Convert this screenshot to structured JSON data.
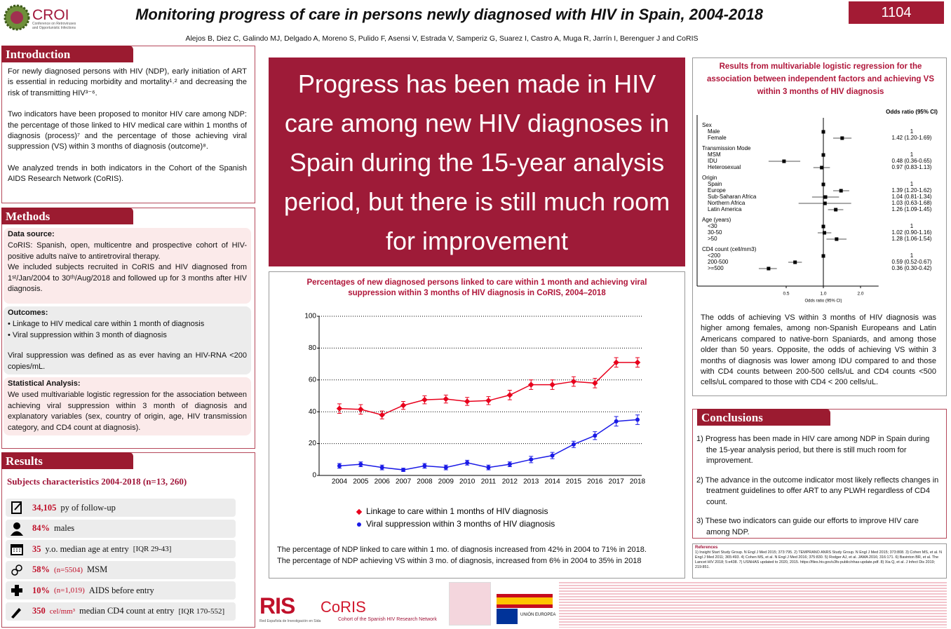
{
  "header": {
    "logo": "CROI",
    "logo_subtitle": "Conference on Retroviruses and Opportunistic Infections",
    "title": "Monitoring progress of care in persons newly diagnosed with HIV in Spain, 2004-2018",
    "authors": "Alejos B, Diez C, Galindo MJ, Delgado A, Moreno S, Pulido F, Asensi V, Estrada V, Samperiz G, Suarez I, Castro A, Muga R, Jarrín I, Berenguer J and CoRIS",
    "poster_number": "1104"
  },
  "introduction": {
    "heading": "Introduction",
    "paragraphs": [
      "For newly diagnosed persons with HIV (NDP), early initiation of ART is essential in reducing morbidity and mortality¹˒² and decreasing the risk of transmitting HIV³⁻⁶.",
      "Two indicators have been proposed to monitor HIV care among NDP: the percentage of those linked to HIV medical care within 1 months of diagnosis (process)⁷ and the percentage of those achieving viral suppression (VS) within 3 months of diagnosis (outcome)⁸.",
      "We analyzed trends in both indicators in the Cohort of the Spanish AIDS Research Network (CoRIS)."
    ]
  },
  "methods": {
    "heading": "Methods",
    "sections": [
      {
        "title": "Data source:",
        "paragraphs": [
          "CoRIS: Spanish, open, multicentre and prospective cohort of HIV-positive adults naïve to antiretroviral therapy.",
          "We included subjects recruited in CoRIS and HIV diagnosed from 1ˢᵗ/Jan/2004 to 30ᵗʰ/Aug/2018 and followed up for 3 months after HIV diagnosis."
        ]
      },
      {
        "title": "Outcomes:",
        "paragraphs": [
          "• Linkage to HIV medical care within 1 month of diagnosis",
          "• Viral suppression within 3 month of diagnosis",
          "Viral suppression was defined as as ever having an HIV-RNA <200 copies/mL."
        ]
      },
      {
        "title": "Statistical Analysis:",
        "paragraphs": [
          "We used multivariable logistic regression for the association between achieving viral suppression within 3 month of diagnosis and explanatory variables (sex, country of origin, age, HIV transmission category, and CD4 count at diagnosis)."
        ]
      }
    ]
  },
  "results": {
    "heading": "Results",
    "subtitle": "Subjects characteristics 2004-2018 (n=13, 260)",
    "items": [
      {
        "value": "34,105",
        "text": "py of follow-up"
      },
      {
        "value": "84%",
        "text": "males"
      },
      {
        "value": "35",
        "text": "y.o. median age at entry",
        "detail": "[IQR 29-43]"
      },
      {
        "value": "58%",
        "n": "(n=5504)",
        "text": "MSM"
      },
      {
        "value": "10%",
        "n": "(n=1,019)",
        "text": "AIDS before entry"
      },
      {
        "value": "350",
        "n": "cel/mm³",
        "text": "median CD4 count at entry",
        "detail": "[IQR 170-552]"
      }
    ]
  },
  "key_message": "Progress has been made in HIV care among new HIV diagnoses in Spain during the 15-year analysis period, but there is still much room for improvement",
  "chart_data": [
    {
      "type": "line",
      "title": "Percentages of new diagnosed persons linked to care within 1 month and achieving viral suppression within 3 months of HIV diagnosis in CoRIS, 2004–2018",
      "categories": [
        "2004",
        "2005",
        "2006",
        "2007",
        "2008",
        "2009",
        "2010",
        "2011",
        "2012",
        "2013",
        "2014",
        "2015",
        "2016",
        "2017",
        "2018"
      ],
      "series": [
        {
          "name": "Linkage to care within 1 months of HIV diagnosis",
          "color": "#e8001c",
          "marker": "diamond",
          "values": [
            42,
            41.5,
            38,
            44,
            47.5,
            48,
            46.5,
            47,
            50.5,
            57,
            57,
            59,
            58,
            71,
            71
          ],
          "errors": [
            3,
            3,
            2.5,
            2.5,
            2.5,
            2.5,
            2.5,
            2.5,
            3,
            3,
            3,
            3,
            3,
            3,
            3
          ]
        },
        {
          "name": "Viral suppression within 3 months of HIV diagnosis",
          "color": "#1a1ae6",
          "marker": "circle",
          "values": [
            6,
            7,
            5,
            3.5,
            6,
            5,
            8,
            5,
            7,
            10,
            12.5,
            19.5,
            25,
            34,
            35
          ],
          "errors": [
            1.5,
            1.5,
            1.5,
            1,
            1.5,
            1.5,
            1.5,
            1.5,
            1.5,
            2,
            2,
            2,
            2.5,
            3,
            3
          ]
        }
      ],
      "ylim": [
        0,
        100
      ],
      "yticks": [
        0,
        20,
        40,
        60,
        80,
        100
      ],
      "grid": true,
      "legend": "bottom",
      "notes": [
        "The percentage of NDP linked to care within 1 mo. of diagnosis increased from 42% in 2004 to 71% in 2018.",
        "The percentage of NDP achieving VS within 3 mo. of diagnosis, increased from 6% in 2004 to 35% in 2018"
      ]
    },
    {
      "type": "forest",
      "title": "Results from multivariable logistic regression for the association between independent factors and achieving VS within 3 months of HIV diagnosis",
      "column_header": "Odds ratio (95% CI)",
      "xlabel": "Odds ratio (95% CI)",
      "log_x": true,
      "xlim": [
        0.3,
        2.8
      ],
      "xticks": [
        0.5,
        {
          "value": 1,
          "label": "1.0"
        },
        {
          "value": 2,
          "label": "2.0"
        }
      ],
      "reference_line": 1,
      "color": "#000000",
      "groups": [
        {
          "name": "Sex",
          "categories": [
            "Male",
            "Female"
          ],
          "values": [
            1,
            1.42
          ],
          "lower": [
            null,
            1.2
          ],
          "upper": [
            null,
            1.69
          ],
          "value_labels": [
            "1",
            "1.42 (1.20-1.69)"
          ]
        },
        {
          "name": "Transmission Mode",
          "categories": [
            "MSM",
            "IDU",
            "Heterosexual"
          ],
          "values": [
            1,
            0.48,
            0.97
          ],
          "lower": [
            null,
            0.36,
            0.83
          ],
          "upper": [
            null,
            0.65,
            1.13
          ],
          "value_labels": [
            "1",
            "0.48 (0.36-0.65)",
            "0.97 (0.83-1.13)"
          ]
        },
        {
          "name": "Origin",
          "categories": [
            "Spain",
            "Europe",
            "Sub-Saharan Africa",
            "Northern Africa",
            "Latin America"
          ],
          "values": [
            1,
            1.39,
            1.04,
            1.03,
            1.26
          ],
          "lower": [
            null,
            1.2,
            0.81,
            0.63,
            1.09
          ],
          "upper": [
            null,
            1.62,
            1.34,
            1.68,
            1.45
          ],
          "value_labels": [
            "1",
            "1.39 (1.20-1.62)",
            "1.04 (0.81-1.34)",
            "1.03 (0.63-1.68)",
            "1.26 (1.09-1.45)"
          ]
        },
        {
          "name": "Age (years)",
          "categories": [
            "<30",
            "30-50",
            ">50"
          ],
          "values": [
            1,
            1.02,
            1.28
          ],
          "lower": [
            null,
            0.9,
            1.06
          ],
          "upper": [
            null,
            1.16,
            1.54
          ],
          "value_labels": [
            "1",
            "1.02 (0.90-1.16)",
            "1.28 (1.06-1.54)"
          ]
        },
        {
          "name": "CD4 count (cell/mm3)",
          "categories": [
            "<200",
            "200-500",
            ">=500"
          ],
          "values": [
            1,
            0.59,
            0.36
          ],
          "lower": [
            null,
            0.52,
            0.3
          ],
          "upper": [
            null,
            0.67,
            0.42
          ],
          "value_labels": [
            "1",
            "0.59 (0.52-0.67)",
            "0.36 (0.30-0.42)"
          ]
        }
      ],
      "notes": "The odds of achieving VS within 3 months of HIV diagnosis was higher among females, among non-Spanish Europeans and Latin Americans compared to native-born Spaniards, and among those older than 50 years. Opposite, the odds of achieving VS within 3 months of diagnosis was lower among IDU compared to and those with CD4 counts between 200-500 cells/uL and CD4 counts <500 cells/uL compared to those with CD4 < 200 cells/uL."
    }
  ],
  "conclusions": {
    "heading": "Conclusions",
    "items": [
      "1) Progress has been made in HIV care among NDP in Spain during the 15-year analysis period, but there is still much room for improvement.",
      "2) The advance in the outcome indicator most likely reflects changes in treatment guidelines to offer ART to any PLWH regardless of CD4 count.",
      "3) These two indicators can guide our efforts to improve HIV care among NDP."
    ]
  },
  "references": {
    "heading": "References",
    "text": "1) Insight Start Study Group. N Engl J Med 2015; 373:795. 2) TEMPRANO ANRS Study Group. N Engl J Med 2015; 373:808. 3) Cohen MS, et al. N Engl J Med 2011; 365:493. 4) Cohen MS, et al. N Engl J Med 2016; 375:830. 5) Rodger AJ, et al. JAMA 2016; 316:171. 6) Bavinton BR, et al. The Lancet HIV 2018; 5:e438. 7) USNHAS updated to 2020, 2015. https://files.hiv.gov/s3fs-public/nhas-update.pdf. 8) Xia Q, et al. J Infect Dis 2019; 219:851."
  },
  "logos": {
    "ris": "RIS",
    "ris_subtitle": "Red Española de Investigación en Sida",
    "coris": "CoRIS",
    "coris_subtitle": "Cohort of the Spanish HIV Research Network",
    "eu": "UNIÓN EUROPEA"
  }
}
